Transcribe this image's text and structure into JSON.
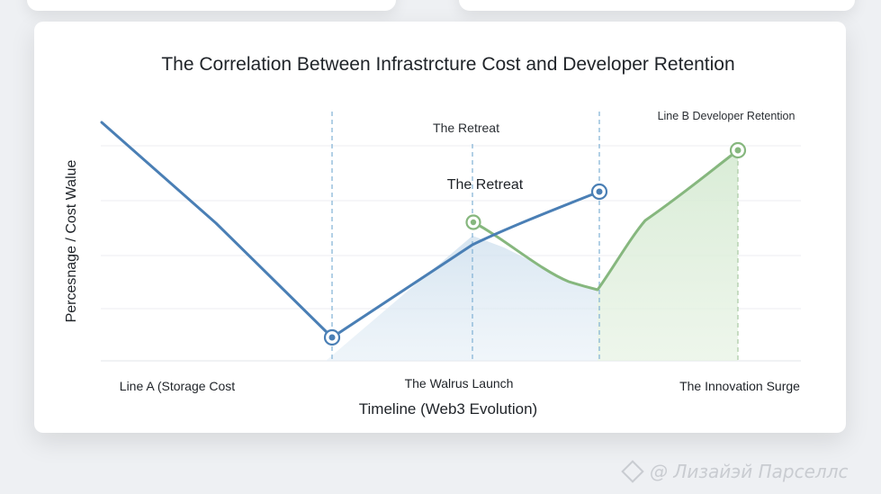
{
  "chart_data": {
    "type": "line",
    "title": "The Correlation Between Infrastrcture Cost and Developer Retention",
    "xlabel": "Timeline (Web3 Evolution)",
    "ylabel": "Percesnage / Cost Walue",
    "x_tick_labels": [
      "Line A (Storage Cost",
      "The Walrus Launch",
      "The Innovation Surge"
    ],
    "x": [
      0,
      1,
      2,
      3,
      4,
      5,
      6,
      7
    ],
    "ylim": [
      0,
      100
    ],
    "series": [
      {
        "key": "line-a",
        "color": "#4a7fb5",
        "values": [
          100,
          57,
          10,
          null,
          48,
          70,
          null,
          null
        ],
        "x": [
          0,
          1,
          2,
          3,
          4,
          5,
          6,
          7
        ]
      },
      {
        "key": "line-b",
        "name": "Line B Developer Retention",
        "color": "#86b77e",
        "values": [
          null,
          null,
          null,
          59,
          30,
          59,
          88,
          null
        ]
      }
    ],
    "annotations": [
      "The Retreat",
      "The Retreat"
    ],
    "vertical_markers": 4,
    "grid": true
  },
  "watermark": "@ Лизайэй Парселлс"
}
